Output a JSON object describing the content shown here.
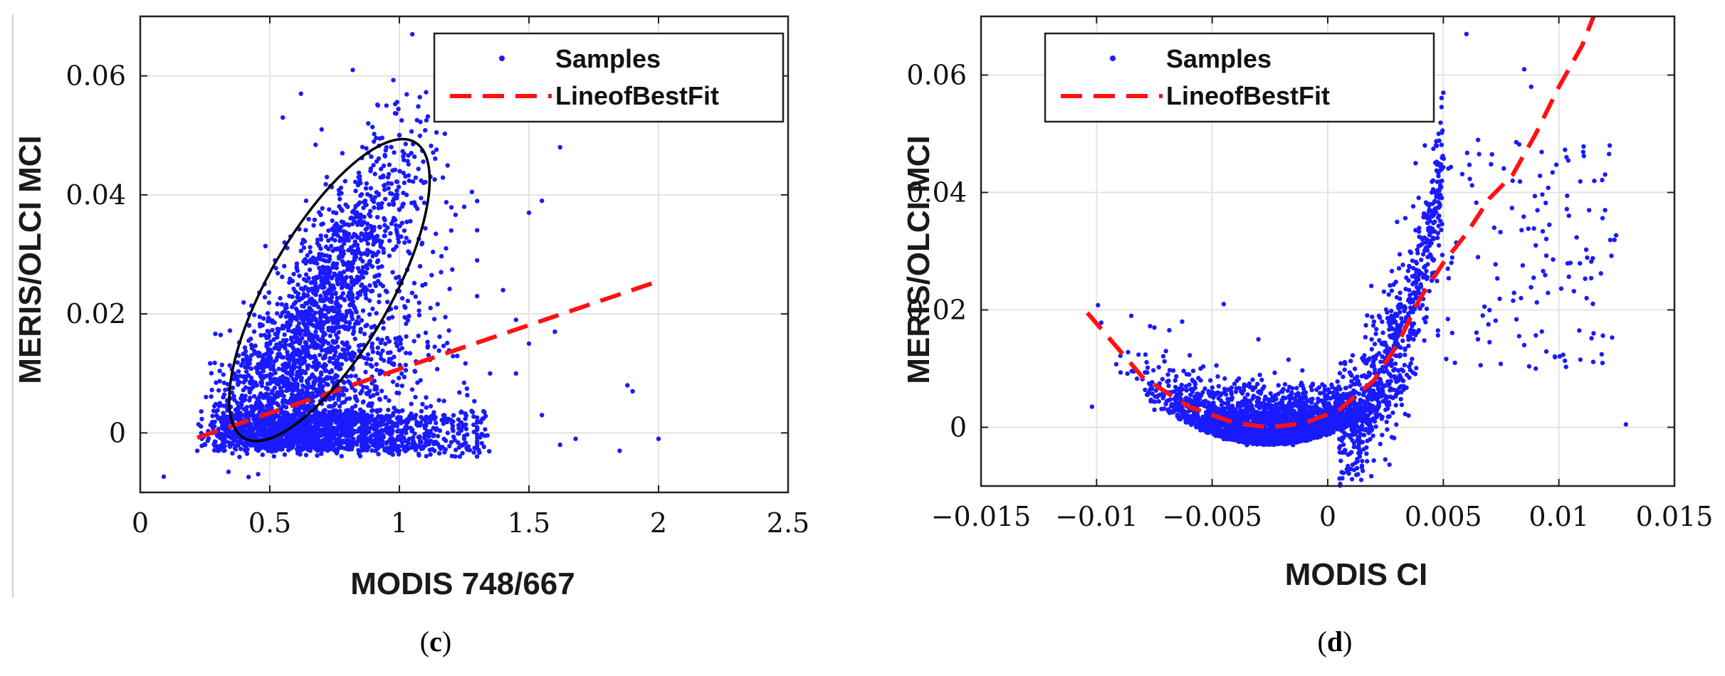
{
  "chart_data": [
    {
      "id": "c",
      "type": "scatter",
      "caption": "(c)",
      "caption_letter": "c",
      "xlabel": "MODIS 748/667",
      "ylabel": "MERIS/OLCI MCI",
      "xlim": [
        0,
        2.5
      ],
      "ylim": [
        -0.01,
        0.07
      ],
      "xticks": [
        0,
        0.5,
        1,
        1.5,
        2,
        2.5
      ],
      "xtick_labels": [
        "0",
        "0.5",
        "1",
        "1.5",
        "2",
        "2.5"
      ],
      "yticks": [
        0,
        0.02,
        0.04,
        0.06
      ],
      "ytick_labels": [
        "0",
        "0.02",
        "0.04",
        "0.06"
      ],
      "grid": true,
      "legend_position": "top-right",
      "series": [
        {
          "name": "Samples",
          "style": "points",
          "color": "#1a1aff",
          "points": [
            [
              0.3,
              -0.003
            ],
            [
              0.35,
              0.001
            ],
            [
              0.4,
              0.004
            ],
            [
              0.45,
              0.008
            ],
            [
              0.5,
              0.012
            ],
            [
              0.55,
              0.018
            ],
            [
              0.6,
              0.022
            ],
            [
              0.65,
              0.026
            ],
            [
              0.7,
              0.03
            ],
            [
              0.75,
              0.034
            ],
            [
              0.8,
              0.038
            ],
            [
              0.85,
              0.042
            ],
            [
              0.9,
              0.045
            ],
            [
              0.95,
              0.048
            ],
            [
              1.0,
              0.05
            ],
            [
              1.05,
              0.067
            ],
            [
              0.82,
              0.061
            ],
            [
              1.62,
              0.048
            ],
            [
              1.5,
              0.037
            ],
            [
              1.55,
              0.039
            ],
            [
              1.25,
              0.038
            ],
            [
              1.2,
              0.034
            ],
            [
              1.3,
              0.029
            ],
            [
              1.4,
              0.024
            ],
            [
              1.45,
              0.019
            ],
            [
              1.5,
              0.015
            ],
            [
              1.6,
              0.017
            ],
            [
              1.55,
              0.003
            ],
            [
              1.68,
              -0.001
            ],
            [
              1.85,
              -0.003
            ],
            [
              1.9,
              0.007
            ],
            [
              1.88,
              0.008
            ],
            [
              2.0,
              -0.001
            ],
            [
              1.62,
              -0.002
            ],
            [
              1.35,
              0.01
            ],
            [
              1.45,
              0.01
            ],
            [
              1.18,
              0.031
            ],
            [
              1.1,
              0.025
            ],
            [
              0.7,
              0.051
            ],
            [
              0.62,
              0.057
            ],
            [
              0.55,
              0.053
            ],
            [
              0.95,
              0.055
            ],
            [
              0.22,
              -0.003
            ],
            [
              0.25,
              -0.002
            ],
            [
              0.28,
              0.0
            ],
            [
              0.32,
              0.006
            ],
            [
              0.38,
              0.013
            ],
            [
              0.42,
              0.02
            ],
            [
              0.48,
              0.025
            ],
            [
              0.52,
              0.029
            ],
            [
              0.58,
              0.033
            ],
            [
              0.64,
              0.039
            ],
            [
              0.72,
              0.043
            ],
            [
              0.78,
              0.047
            ],
            [
              0.88,
              0.052
            ],
            [
              0.92,
              0.04
            ],
            [
              0.98,
              0.036
            ],
            [
              1.02,
              0.032
            ],
            [
              1.08,
              0.028
            ],
            [
              1.12,
              0.021
            ],
            [
              0.7,
              0.0
            ],
            [
              0.8,
              -0.002
            ],
            [
              0.9,
              0.001
            ],
            [
              1.0,
              -0.003
            ],
            [
              1.15,
              -0.002
            ],
            [
              1.25,
              -0.001
            ],
            [
              0.6,
              0.004
            ],
            [
              0.5,
              0.002
            ],
            [
              0.45,
              -0.001
            ],
            [
              0.65,
              0.009
            ],
            [
              0.75,
              0.013
            ],
            [
              0.85,
              0.017
            ]
          ]
        },
        {
          "name": "LineofBestFit",
          "style": "dashed-line",
          "color": "#ff1111",
          "points": [
            [
              0.22,
              -0.0008
            ],
            [
              2.0,
              0.0255
            ]
          ]
        }
      ],
      "annotation": {
        "shape": "ellipse",
        "color": "#000000",
        "center": [
          0.73,
          0.024
        ],
        "description": "tilted ellipse enclosing the upper cloud of samples"
      }
    },
    {
      "id": "d",
      "type": "scatter",
      "caption": "(d)",
      "caption_letter": "d",
      "xlabel": "MODIS CI",
      "ylabel": "MERIS/OLCI MCI",
      "xlim": [
        -0.015,
        0.015
      ],
      "ylim": [
        -0.01,
        0.07
      ],
      "xticks": [
        -0.015,
        -0.01,
        -0.005,
        0,
        0.005,
        0.01,
        0.015
      ],
      "xtick_labels": [
        "−0.015",
        "−0.01",
        "−0.005",
        "0",
        "0.005",
        "0.01",
        "0.015"
      ],
      "yticks": [
        0,
        0.02,
        0.04,
        0.06
      ],
      "ytick_labels": [
        "0",
        "0.02",
        "0.04",
        "0.06"
      ],
      "grid": true,
      "legend_position": "top-left",
      "series": [
        {
          "name": "Samples",
          "style": "points",
          "color": "#1a1aff",
          "points": [
            [
              -0.0075,
              0.017
            ],
            [
              -0.007,
              0.013
            ],
            [
              -0.006,
              0.009
            ],
            [
              -0.005,
              0.006
            ],
            [
              -0.004,
              0.003
            ],
            [
              -0.003,
              0.001
            ],
            [
              -0.002,
              -0.001
            ],
            [
              -0.001,
              -0.002
            ],
            [
              0.0,
              -0.001
            ],
            [
              0.001,
              0.003
            ],
            [
              0.002,
              0.008
            ],
            [
              0.0025,
              0.013
            ],
            [
              0.003,
              0.019
            ],
            [
              0.0035,
              0.025
            ],
            [
              0.004,
              0.031
            ],
            [
              0.0045,
              0.04
            ],
            [
              0.0048,
              0.05
            ],
            [
              0.005,
              0.057
            ],
            [
              0.0045,
              0.057
            ],
            [
              0.006,
              0.067
            ],
            [
              0.0085,
              0.061
            ],
            [
              0.0088,
              0.058
            ],
            [
              0.0122,
              0.048
            ],
            [
              0.012,
              0.037
            ],
            [
              0.0112,
              0.022
            ],
            [
              0.0105,
              0.028
            ],
            [
              0.0115,
              0.016
            ],
            [
              0.0129,
              0.0005
            ],
            [
              0.008,
              0.042
            ],
            [
              0.0072,
              0.034
            ],
            [
              0.009,
              0.031
            ],
            [
              0.0065,
              0.029
            ],
            [
              0.007,
              0.0145
            ],
            [
              0.0055,
              0.011
            ],
            [
              0.0065,
              0.015
            ],
            [
              0.0085,
              0.014
            ],
            [
              0.009,
              0.01
            ],
            [
              -0.0102,
              0.0035
            ],
            [
              -0.0085,
              0.019
            ],
            [
              -0.0063,
              0.018
            ],
            [
              -0.0045,
              0.021
            ],
            [
              -0.003,
              0.015
            ],
            [
              -0.0055,
              0.01
            ],
            [
              -0.0065,
              0.004
            ],
            [
              -0.0075,
              0.003
            ],
            [
              -0.0045,
              -0.002
            ],
            [
              -0.0035,
              -0.003
            ],
            [
              -0.0015,
              -0.003
            ],
            [
              0.0005,
              -0.002
            ],
            [
              0.0015,
              0.001
            ],
            [
              -0.002,
              0.004
            ],
            [
              -0.001,
              0.006
            ],
            [
              0.0,
              0.005
            ],
            [
              0.001,
              0.009
            ],
            [
              0.002,
              0.018
            ],
            [
              0.003,
              0.035
            ],
            [
              0.0038,
              0.045
            ],
            [
              0.0042,
              0.048
            ],
            [
              0.0025,
              0.003
            ],
            [
              0.0035,
              0.002
            ]
          ]
        },
        {
          "name": "LineofBestFit",
          "style": "dashed-line",
          "color": "#ff1111",
          "points": [
            [
              -0.0104,
              0.0195
            ],
            [
              -0.008,
              0.0085
            ],
            [
              -0.006,
              0.0035
            ],
            [
              -0.004,
              0.0007
            ],
            [
              -0.0025,
              0.0
            ],
            [
              -0.001,
              0.0007
            ],
            [
              0.0005,
              0.003
            ],
            [
              0.002,
              0.008
            ],
            [
              0.003,
              0.014
            ],
            [
              0.0035,
              0.018
            ],
            [
              0.004,
              0.022
            ],
            [
              0.005,
              0.028
            ],
            [
              0.006,
              0.033
            ],
            [
              0.007,
              0.039
            ],
            [
              0.008,
              0.043
            ],
            [
              0.009,
              0.05
            ],
            [
              0.01,
              0.058
            ],
            [
              0.011,
              0.065
            ],
            [
              0.0115,
              0.07
            ]
          ]
        }
      ]
    }
  ]
}
